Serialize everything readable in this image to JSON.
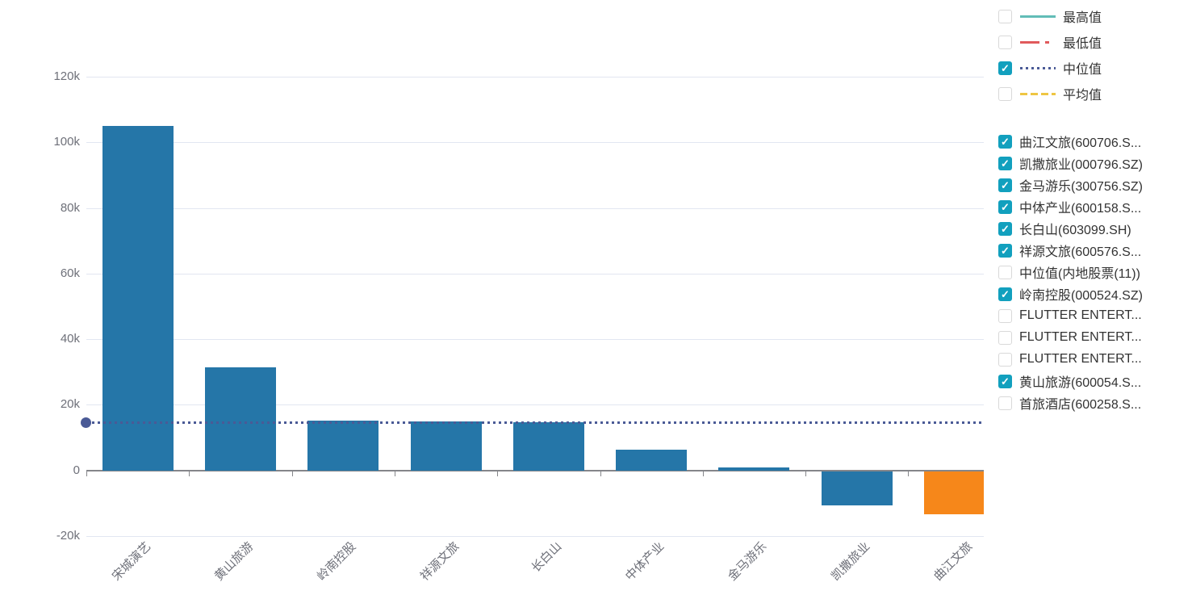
{
  "colors": {
    "bar_blue": "#2576a8",
    "bar_orange": "#f6871a",
    "checkbox_checked": "#12a0be",
    "grid": "#e2e6f1",
    "axis": "#85868a",
    "axis_text": "#6e7079",
    "legend_text": "#333333"
  },
  "icons": {
    "check_glyph": "✓"
  },
  "legend": {
    "stat_items": [
      {
        "label": "最高值",
        "style": "solid",
        "color": "#62bdb7",
        "checked": false
      },
      {
        "label": "最低值",
        "style": "dashdot",
        "color": "#e05a5c",
        "checked": false
      },
      {
        "label": "中位值",
        "style": "dotted",
        "color": "#4a5a96",
        "checked": true
      },
      {
        "label": "平均值",
        "style": "dashed",
        "color": "#eec643",
        "checked": false
      }
    ],
    "series_items": [
      {
        "label": "曲江文旅(600706.S...",
        "checked": true
      },
      {
        "label": "凯撒旅业(000796.SZ)",
        "checked": true
      },
      {
        "label": "金马游乐(300756.SZ)",
        "checked": true
      },
      {
        "label": "中体产业(600158.S...",
        "checked": true
      },
      {
        "label": "长白山(603099.SH)",
        "checked": true
      },
      {
        "label": "祥源文旅(600576.S...",
        "checked": true
      },
      {
        "label": "中位值(内地股票(11))",
        "checked": false
      },
      {
        "label": "岭南控股(000524.SZ)",
        "checked": true
      },
      {
        "label": "FLUTTER ENTERT...",
        "checked": false
      },
      {
        "label": "FLUTTER ENTERT...",
        "checked": false
      },
      {
        "label": "FLUTTER ENTERT...",
        "checked": false
      },
      {
        "label": "黄山旅游(600054.S...",
        "checked": true
      },
      {
        "label": "首旅酒店(600258.S...",
        "checked": false
      }
    ]
  },
  "chart_data": {
    "type": "bar",
    "title": "",
    "xlabel": "",
    "ylabel": "",
    "categories": [
      "宋城演艺",
      "黄山旅游",
      "岭南控股",
      "祥源文旅",
      "长白山",
      "中体产业",
      "金马游乐",
      "凯撒旅业",
      "曲江文旅"
    ],
    "values": [
      105000,
      31400,
      15200,
      14900,
      14700,
      6300,
      900,
      -10400,
      -13200
    ],
    "bar_default_color": "#2576a8",
    "bar_highlight": {
      "index": 8,
      "color": "#f6871a"
    },
    "median_line": {
      "label": "中位值",
      "value": 14600,
      "color": "#4a5a96",
      "style": "dotted"
    },
    "yticks": [
      {
        "value": 120000,
        "label": "120k"
      },
      {
        "value": 100000,
        "label": "100k"
      },
      {
        "value": 80000,
        "label": "80k"
      },
      {
        "value": 60000,
        "label": "60k"
      },
      {
        "value": 40000,
        "label": "40k"
      },
      {
        "value": 20000,
        "label": "20k"
      },
      {
        "value": 0,
        "label": "0"
      },
      {
        "value": -20000,
        "label": "-20k"
      }
    ],
    "ylim": [
      -20000,
      120000
    ],
    "grid": true,
    "legend_position": "right",
    "legend_checked_series": [
      "曲江文旅",
      "凯撒旅业",
      "金马游乐",
      "中体产业",
      "长白山",
      "祥源文旅",
      "岭南控股",
      "黄山旅游"
    ]
  }
}
